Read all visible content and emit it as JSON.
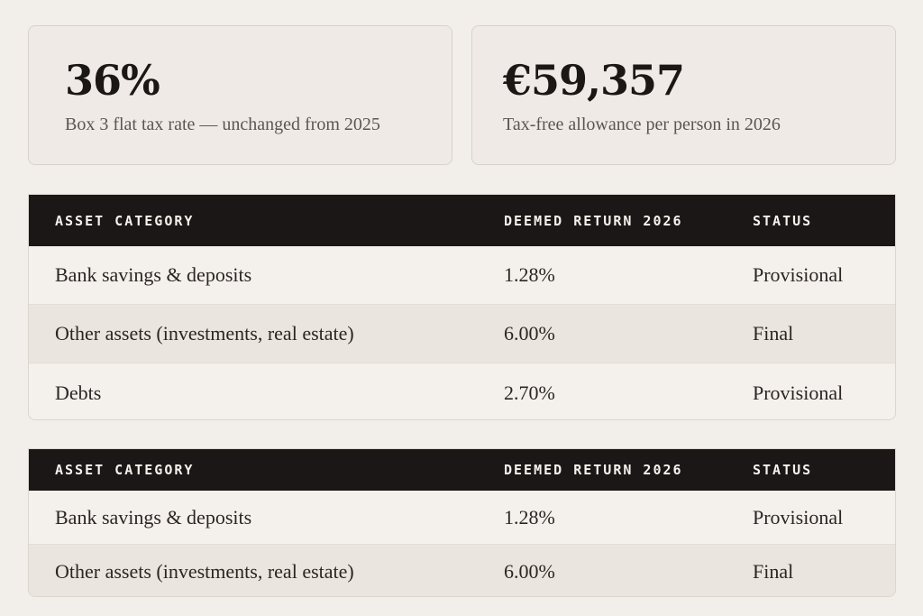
{
  "stats": [
    {
      "value": "36%",
      "caption": "Box 3 flat tax rate — unchanged from 2025"
    },
    {
      "value": "€59,357",
      "caption": "Tax-free allowance per person in 2026"
    }
  ],
  "tables": [
    {
      "headers": [
        "ASSET CATEGORY",
        "DEEMED RETURN 2026",
        "STATUS"
      ],
      "rows": [
        [
          "Bank savings & deposits",
          "1.28%",
          "Provisional"
        ],
        [
          "Other assets (investments, real estate)",
          "6.00%",
          "Final"
        ],
        [
          "Debts",
          "2.70%",
          "Provisional"
        ]
      ]
    },
    {
      "headers": [
        "ASSET CATEGORY",
        "DEEMED RETURN 2026",
        "STATUS"
      ],
      "rows": [
        [
          "Bank savings & deposits",
          "1.28%",
          "Provisional"
        ],
        [
          "Other assets (investments, real estate)",
          "6.00%",
          "Final"
        ]
      ]
    }
  ]
}
